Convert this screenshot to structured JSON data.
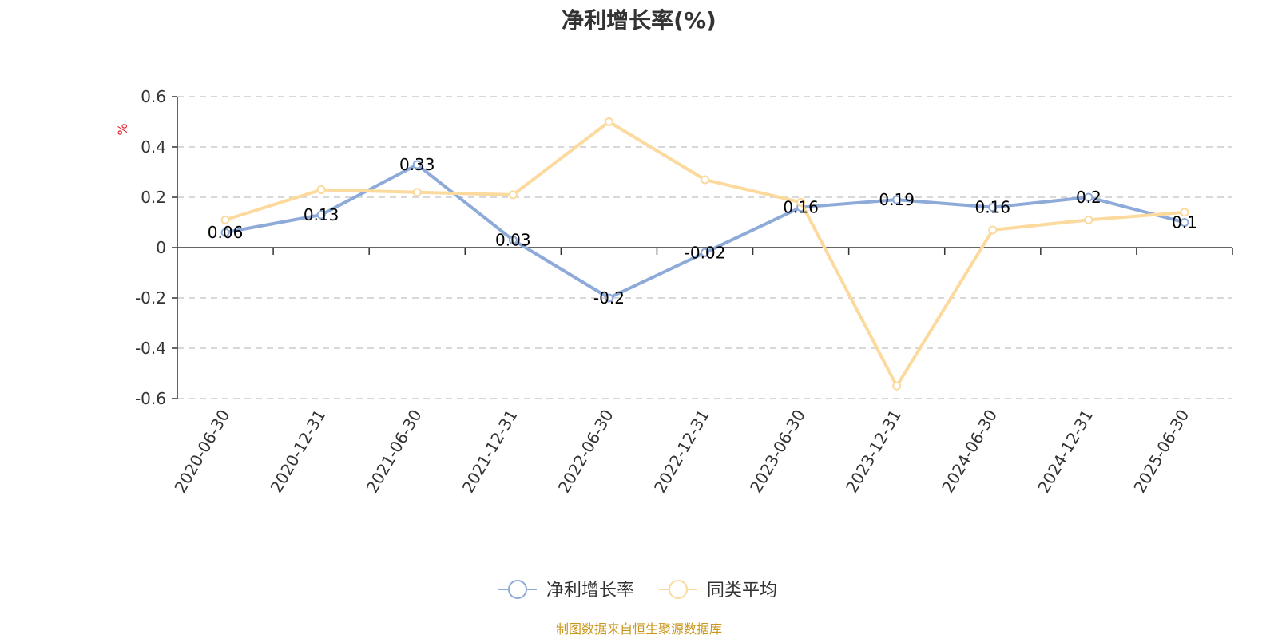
{
  "chart_data": {
    "type": "line",
    "title": "净利增长率(%)",
    "ylabel": "%",
    "categories": [
      "2020-06-30",
      "2020-12-31",
      "2021-06-30",
      "2021-12-31",
      "2022-06-30",
      "2022-12-31",
      "2023-06-30",
      "2023-12-31",
      "2024-06-30",
      "2024-12-31",
      "2025-06-30"
    ],
    "ylim": [
      -0.6,
      0.6
    ],
    "yticks": [
      0.6,
      0.4,
      0.2,
      0,
      -0.2,
      -0.4,
      -0.6
    ],
    "ytick_labels": [
      "0.6",
      "0.4",
      "0.2",
      "0",
      "-0.2",
      "-0.4",
      "-0.6"
    ],
    "grid": true,
    "legend_position": "bottom",
    "series": [
      {
        "name": "净利增长率",
        "color": "#8eaad8",
        "values": [
          0.06,
          0.13,
          0.33,
          0.03,
          -0.2,
          -0.02,
          0.16,
          0.19,
          0.16,
          0.2,
          0.1
        ],
        "labels": [
          "0.06",
          "0.13",
          "0.33",
          "0.03",
          "-0.2",
          "-0.02",
          "0.16",
          "0.19",
          "0.16",
          "0.2",
          "0.1"
        ]
      },
      {
        "name": "同类平均",
        "color": "#fcd99c",
        "values": [
          0.11,
          0.23,
          0.22,
          0.21,
          0.5,
          0.27,
          0.18,
          -0.55,
          0.07,
          0.11,
          0.14
        ]
      }
    ]
  },
  "source_note": {
    "text": "制图数据来自恒生聚源数据库",
    "color": "#c9971c"
  },
  "colors": {
    "unit_label": "#e0202e",
    "grid": "#cccccc",
    "axis": "#333333"
  }
}
